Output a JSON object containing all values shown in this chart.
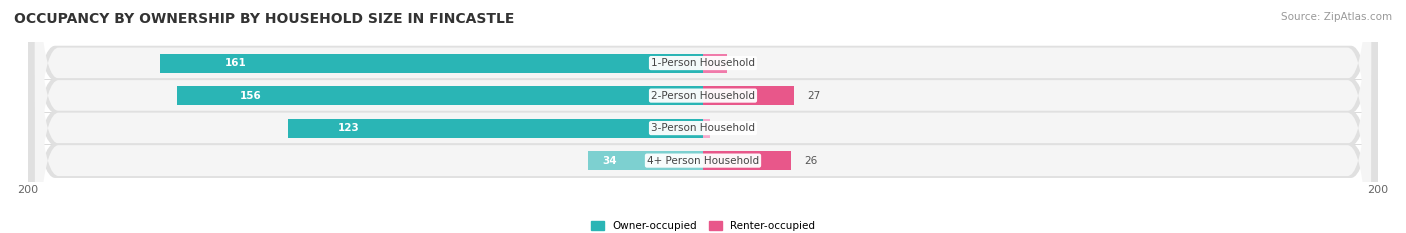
{
  "title": "OCCUPANCY BY OWNERSHIP BY HOUSEHOLD SIZE IN FINCASTLE",
  "source": "Source: ZipAtlas.com",
  "categories": [
    "1-Person Household",
    "2-Person Household",
    "3-Person Household",
    "4+ Person Household"
  ],
  "owner_values": [
    161,
    156,
    123,
    34
  ],
  "renter_values": [
    7,
    27,
    2,
    26
  ],
  "owner_colors": [
    "#2ab5b5",
    "#2ab5b5",
    "#2ab5b5",
    "#7dd0d0"
  ],
  "renter_colors": [
    "#f07aaa",
    "#e8578a",
    "#f5aacc",
    "#e8578a"
  ],
  "row_bg_color": "#e8e8e8",
  "row_inner_color": "#f5f5f5",
  "x_max": 200,
  "bar_height": 0.58,
  "legend_owner": "Owner-occupied",
  "legend_renter": "Renter-occupied",
  "title_fontsize": 10,
  "label_fontsize": 7.5,
  "value_fontsize": 7.5,
  "tick_fontsize": 8,
  "source_fontsize": 7.5
}
